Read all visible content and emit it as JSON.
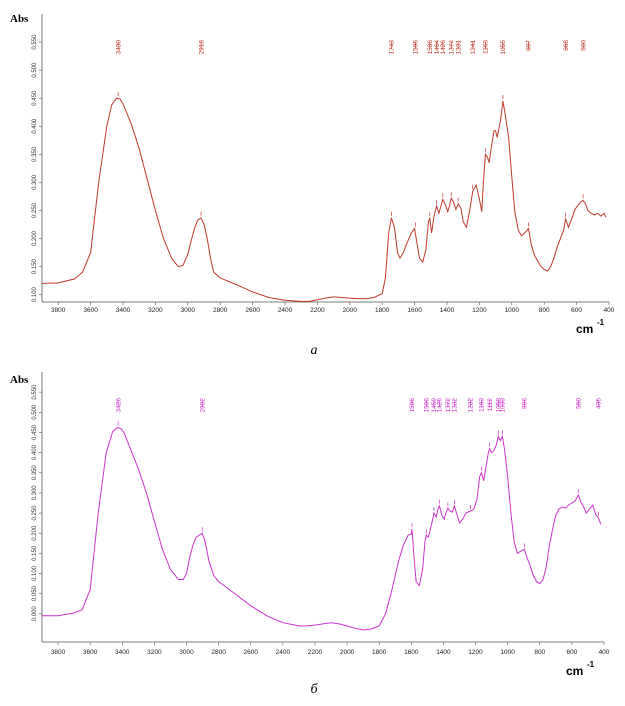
{
  "colors": {
    "panel_a": "#c0392b",
    "panel_b": "#cc33cc",
    "axis": "#555555"
  },
  "chart_data": [
    {
      "type": "line",
      "caption": "а",
      "ylabel": "Abs",
      "xlabel_unit": "cm",
      "xlabel_exp": "-1",
      "xlim": [
        3900,
        400
      ],
      "ylim": [
        0.087,
        0.6
      ],
      "x_ticks": [
        "3800",
        "3600",
        "3400",
        "3200",
        "3000",
        "2800",
        "2600",
        "2400",
        "2200",
        "2000",
        "1800",
        "1600",
        "1400",
        "1200",
        "1000",
        "800",
        "600",
        "400"
      ],
      "y_ticks": [
        "0.100",
        "0.150",
        "0.200",
        "0.250",
        "0.300",
        "0.350",
        "0.400",
        "0.450",
        "0.500",
        "0.550"
      ],
      "peak_labels": [
        "3430",
        "2918",
        "1743",
        "1595",
        "1506",
        "1464",
        "1426",
        "1374",
        "1331",
        "1241",
        "1163",
        "1055",
        "897",
        "668",
        "560"
      ],
      "series": [
        {
          "x": [
            3900,
            3800,
            3700,
            3650,
            3600,
            3550,
            3500,
            3470,
            3440,
            3420,
            3400,
            3350,
            3300,
            3250,
            3200,
            3150,
            3100,
            3060,
            3030,
            3000,
            2980,
            2960,
            2940,
            2920,
            2900,
            2880,
            2860,
            2840,
            2800,
            2760,
            2700,
            2600,
            2500,
            2400,
            2300,
            2250,
            2200,
            2150,
            2100,
            2050,
            2000,
            1950,
            1900,
            1850,
            1800,
            1780,
            1760,
            1743,
            1725,
            1705,
            1690,
            1670,
            1650,
            1620,
            1600,
            1590,
            1570,
            1550,
            1530,
            1515,
            1506,
            1495,
            1480,
            1464,
            1450,
            1440,
            1426,
            1410,
            1395,
            1385,
            1374,
            1360,
            1345,
            1331,
            1315,
            1300,
            1280,
            1260,
            1241,
            1220,
            1200,
            1185,
            1175,
            1163,
            1150,
            1140,
            1125,
            1110,
            1100,
            1090,
            1080,
            1070,
            1055,
            1040,
            1020,
            1000,
            980,
            960,
            940,
            920,
            897,
            880,
            860,
            840,
            820,
            800,
            780,
            760,
            740,
            720,
            700,
            680,
            668,
            650,
            630,
            610,
            590,
            575,
            560,
            545,
            530,
            510,
            490,
            470,
            450,
            430,
            420
          ],
          "y": [
            0.12,
            0.121,
            0.128,
            0.14,
            0.175,
            0.3,
            0.4,
            0.438,
            0.45,
            0.449,
            0.44,
            0.405,
            0.36,
            0.305,
            0.25,
            0.2,
            0.165,
            0.15,
            0.152,
            0.172,
            0.195,
            0.217,
            0.232,
            0.237,
            0.226,
            0.2,
            0.165,
            0.14,
            0.13,
            0.125,
            0.118,
            0.105,
            0.095,
            0.09,
            0.088,
            0.088,
            0.091,
            0.094,
            0.096,
            0.095,
            0.094,
            0.093,
            0.093,
            0.095,
            0.102,
            0.13,
            0.21,
            0.237,
            0.22,
            0.175,
            0.165,
            0.175,
            0.19,
            0.21,
            0.218,
            0.2,
            0.165,
            0.158,
            0.18,
            0.23,
            0.236,
            0.21,
            0.24,
            0.258,
            0.245,
            0.255,
            0.27,
            0.26,
            0.248,
            0.258,
            0.272,
            0.265,
            0.252,
            0.262,
            0.255,
            0.23,
            0.22,
            0.25,
            0.285,
            0.295,
            0.27,
            0.248,
            0.3,
            0.35,
            0.345,
            0.335,
            0.365,
            0.392,
            0.392,
            0.38,
            0.395,
            0.41,
            0.445,
            0.42,
            0.38,
            0.31,
            0.245,
            0.215,
            0.205,
            0.21,
            0.218,
            0.19,
            0.17,
            0.16,
            0.15,
            0.145,
            0.142,
            0.15,
            0.165,
            0.185,
            0.2,
            0.215,
            0.235,
            0.22,
            0.235,
            0.252,
            0.26,
            0.265,
            0.268,
            0.262,
            0.25,
            0.245,
            0.242,
            0.245,
            0.24,
            0.245,
            0.238
          ]
        }
      ]
    },
    {
      "type": "line",
      "caption": "б",
      "ylabel": "Abs",
      "xlabel_unit": "cm",
      "xlabel_exp": "-1",
      "xlim": [
        3900,
        400
      ],
      "ylim": [
        -0.07,
        0.6
      ],
      "x_ticks": [
        "3800",
        "3600",
        "3400",
        "3200",
        "3000",
        "2800",
        "2600",
        "2400",
        "2200",
        "2000",
        "1800",
        "1600",
        "1400",
        "1200",
        "1000",
        "800",
        "600",
        "400"
      ],
      "y_ticks": [
        "0.000",
        "0.050",
        "0.100",
        "0.150",
        "0.200",
        "0.250",
        "0.300",
        "0.350",
        "0.400",
        "0.450",
        "0.500",
        "0.550"
      ],
      "peak_labels": [
        "3426",
        "2902",
        "1596",
        "1506",
        "1459",
        "1425",
        "1372",
        "1332",
        "1232",
        "1163",
        "1112",
        "1058",
        "1033",
        "896",
        "560",
        "435"
      ],
      "series": [
        {
          "x": [
            3900,
            3800,
            3700,
            3650,
            3600,
            3550,
            3500,
            3460,
            3430,
            3410,
            3390,
            3350,
            3300,
            3250,
            3200,
            3150,
            3100,
            3050,
            3020,
            3000,
            2980,
            2960,
            2940,
            2920,
            2902,
            2885,
            2860,
            2830,
            2800,
            2760,
            2700,
            2600,
            2500,
            2400,
            2300,
            2250,
            2200,
            2150,
            2100,
            2050,
            2000,
            1950,
            1900,
            1850,
            1800,
            1760,
            1720,
            1680,
            1650,
            1620,
            1600,
            1596,
            1585,
            1570,
            1550,
            1530,
            1515,
            1506,
            1495,
            1475,
            1459,
            1445,
            1435,
            1425,
            1410,
            1395,
            1385,
            1372,
            1360,
            1345,
            1332,
            1315,
            1300,
            1280,
            1260,
            1232,
            1210,
            1190,
            1175,
            1163,
            1150,
            1135,
            1120,
            1112,
            1100,
            1085,
            1070,
            1058,
            1045,
            1033,
            1020,
            1000,
            980,
            960,
            940,
            920,
            896,
            880,
            860,
            840,
            820,
            800,
            780,
            760,
            740,
            720,
            700,
            680,
            660,
            640,
            620,
            600,
            580,
            560,
            545,
            530,
            510,
            490,
            470,
            450,
            435,
            420
          ],
          "y": [
            -0.005,
            -0.005,
            0.002,
            0.01,
            0.06,
            0.25,
            0.4,
            0.452,
            0.462,
            0.46,
            0.45,
            0.41,
            0.36,
            0.3,
            0.23,
            0.16,
            0.11,
            0.085,
            0.085,
            0.1,
            0.14,
            0.17,
            0.19,
            0.195,
            0.2,
            0.18,
            0.13,
            0.095,
            0.08,
            0.068,
            0.05,
            0.02,
            -0.005,
            -0.022,
            -0.03,
            -0.03,
            -0.028,
            -0.025,
            -0.022,
            -0.025,
            -0.03,
            -0.036,
            -0.04,
            -0.038,
            -0.03,
            0.0,
            0.06,
            0.13,
            0.17,
            0.195,
            0.198,
            0.21,
            0.15,
            0.08,
            0.07,
            0.11,
            0.18,
            0.195,
            0.19,
            0.22,
            0.25,
            0.24,
            0.258,
            0.268,
            0.245,
            0.235,
            0.25,
            0.262,
            0.255,
            0.252,
            0.268,
            0.245,
            0.225,
            0.235,
            0.25,
            0.255,
            0.26,
            0.285,
            0.34,
            0.35,
            0.33,
            0.365,
            0.4,
            0.41,
            0.4,
            0.405,
            0.42,
            0.44,
            0.43,
            0.44,
            0.41,
            0.34,
            0.25,
            0.18,
            0.15,
            0.155,
            0.16,
            0.14,
            0.12,
            0.095,
            0.08,
            0.075,
            0.085,
            0.115,
            0.17,
            0.21,
            0.245,
            0.26,
            0.265,
            0.262,
            0.27,
            0.275,
            0.28,
            0.295,
            0.278,
            0.268,
            0.25,
            0.26,
            0.27,
            0.245,
            0.238,
            0.222
          ]
        }
      ]
    }
  ]
}
